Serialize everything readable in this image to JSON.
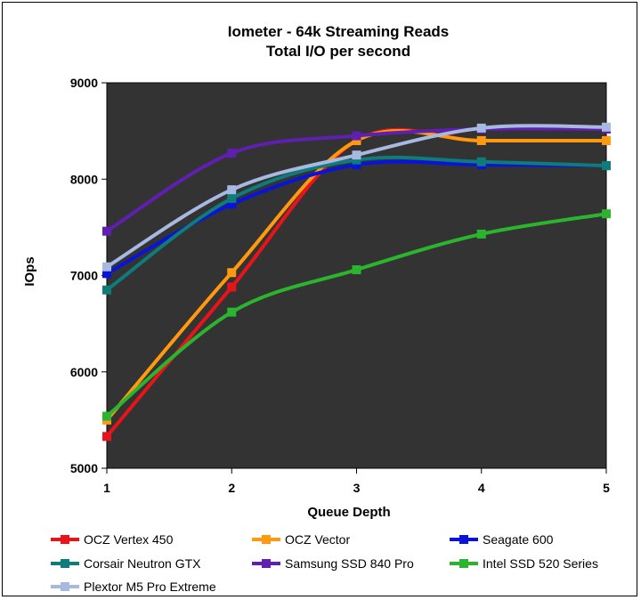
{
  "chart_data": {
    "type": "line",
    "title": "Iometer - 64k  Streaming Reads",
    "subtitle": "Total I/O per second",
    "xlabel": "Queue Depth",
    "ylabel": "IOps",
    "x": [
      1,
      2,
      3,
      4,
      5
    ],
    "x_tick_labels": [
      "1",
      "2",
      "3",
      "4",
      "5"
    ],
    "ylim": [
      5000,
      9000
    ],
    "y_ticks": [
      5000,
      6000,
      7000,
      8000,
      9000
    ],
    "y_tick_labels": [
      "5000",
      "6000",
      "7000",
      "8000",
      "9000"
    ],
    "grid": false,
    "plot_background": "#333333",
    "legend_position": "bottom",
    "series": [
      {
        "name": "OCZ Vertex 450",
        "color": "#e8141a",
        "values": [
          5330,
          6880,
          8400,
          8400,
          8400
        ]
      },
      {
        "name": "OCZ Vector",
        "color": "#ff9a10",
        "values": [
          5500,
          7030,
          8400,
          8400,
          8400
        ]
      },
      {
        "name": "Seagate 600",
        "color": "#0a14d8",
        "values": [
          7020,
          7740,
          8150,
          8150,
          8140
        ]
      },
      {
        "name": "Corsair Neutron GTX",
        "color": "#0f7b7a",
        "values": [
          6850,
          7800,
          8200,
          8180,
          8140
        ]
      },
      {
        "name": "Samsung SSD 840 Pro",
        "color": "#5f1fb0",
        "values": [
          7460,
          8270,
          8450,
          8520,
          8520
        ]
      },
      {
        "name": "Intel SSD 520 Series",
        "color": "#2bb52e",
        "values": [
          5540,
          6620,
          7060,
          7430,
          7640
        ]
      },
      {
        "name": "Plextor M5 Pro Extreme",
        "color": "#a7b9e0",
        "values": [
          7090,
          7890,
          8250,
          8530,
          8540
        ]
      }
    ]
  }
}
